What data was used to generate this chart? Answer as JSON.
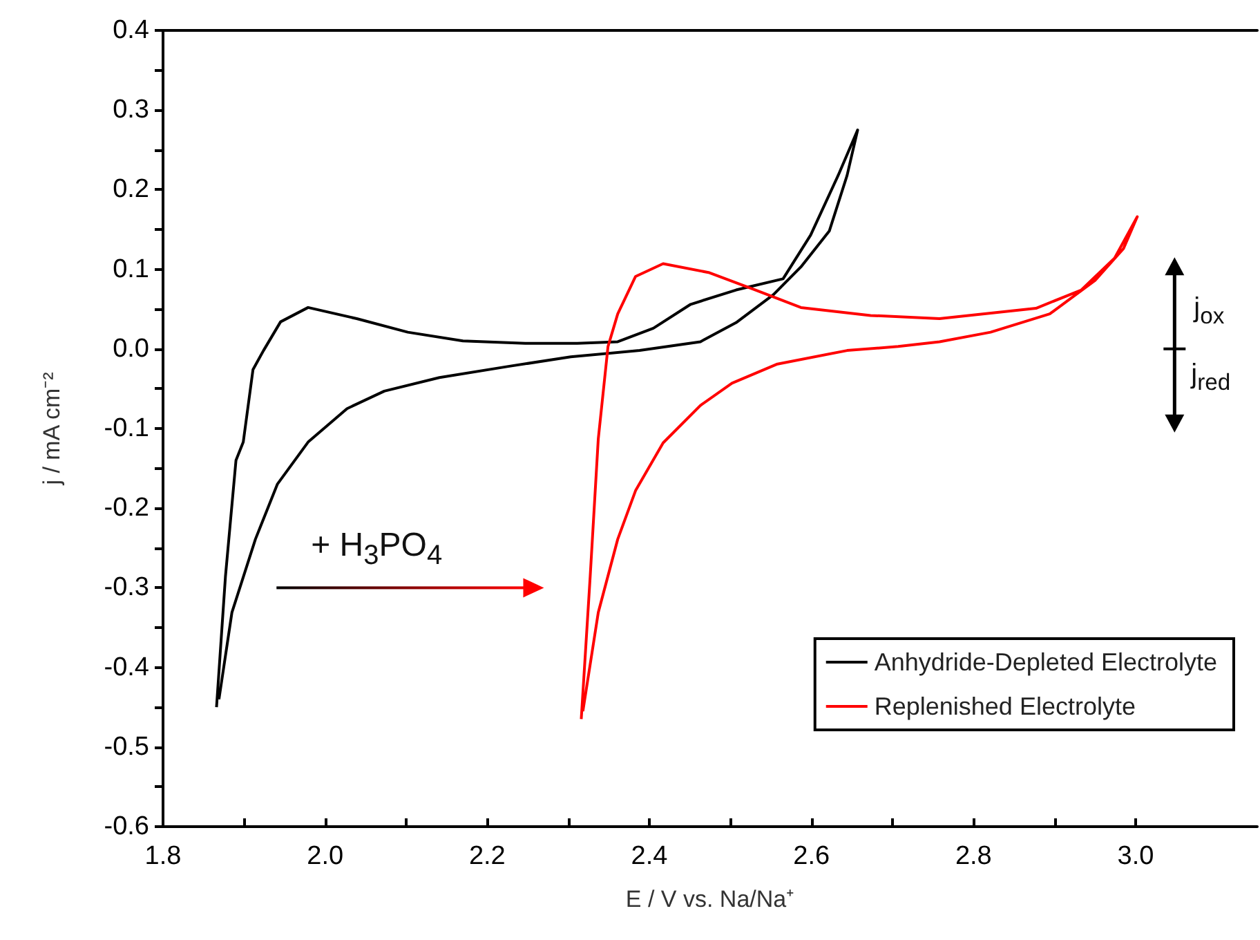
{
  "chart_data": {
    "type": "line",
    "xlabel": "E / V vs. Na/Na⁺",
    "ylabel": "j / mA cm⁻²",
    "xlim": [
      1.8,
      3.15
    ],
    "xticks": [
      {
        "value": 1.8,
        "label": "1.8"
      },
      {
        "value": 1.9,
        "label": null
      },
      {
        "value": 2.0,
        "label": "2.0"
      },
      {
        "value": 2.1,
        "label": null
      },
      {
        "value": 2.2,
        "label": "2.2"
      },
      {
        "value": 2.3,
        "label": null
      },
      {
        "value": 2.4,
        "label": "2.4"
      },
      {
        "value": 2.5,
        "label": null
      },
      {
        "value": 2.6,
        "label": "2.6"
      },
      {
        "value": 2.7,
        "label": null
      },
      {
        "value": 2.8,
        "label": "2.8"
      },
      {
        "value": 2.9,
        "label": null
      },
      {
        "value": 3.0,
        "label": "3.0"
      }
    ],
    "ylim": [
      -0.6,
      0.4
    ],
    "yticks": [
      -0.6,
      {
        "value": -0.55,
        "label": null
      },
      -0.5,
      {
        "value": -0.45,
        "label": null
      },
      -0.4,
      {
        "value": -0.35,
        "label": null
      },
      -0.3,
      {
        "value": -0.25,
        "label": null
      },
      -0.2,
      {
        "value": -0.15,
        "label": null
      },
      -0.1,
      {
        "value": -0.05,
        "label": null
      },
      {
        "value": 0,
        "label": "0.0"
      },
      {
        "value": 0.05,
        "label": null
      },
      0.1,
      {
        "value": 0.15,
        "label": null
      },
      0.2,
      {
        "value": 0.25,
        "label": null
      },
      0.3,
      {
        "value": 0.35,
        "label": null
      },
      0.4
    ],
    "grid": false,
    "legend": "bottom right",
    "marker": "none",
    "line_style": "solid",
    "series": [
      {
        "name": "Anhydride-Depleted Electrolyte",
        "color": "#000000",
        "x": [
          1.866,
          1.877,
          1.89,
          1.899,
          1.911,
          1.924,
          1.945,
          1.979,
          2.039,
          2.102,
          2.17,
          2.247,
          2.311,
          2.361,
          2.405,
          2.451,
          2.507,
          2.565,
          2.599,
          2.633,
          2.657,
          2.644,
          2.622,
          2.587,
          2.553,
          2.507,
          2.463,
          2.388,
          2.303,
          2.226,
          2.141,
          2.073,
          2.027,
          1.979,
          1.941,
          1.914,
          1.885,
          1.869
        ],
        "values": [
          -0.45,
          -0.286,
          -0.14,
          -0.117,
          -0.026,
          -0.002,
          0.034,
          0.052,
          0.038,
          0.021,
          0.01,
          0.007,
          0.007,
          0.009,
          0.026,
          0.056,
          0.074,
          0.088,
          0.143,
          0.218,
          0.275,
          0.218,
          0.148,
          0.103,
          0.068,
          0.033,
          0.009,
          -0.002,
          -0.01,
          -0.022,
          -0.036,
          -0.053,
          -0.075,
          -0.117,
          -0.17,
          -0.239,
          -0.331,
          -0.44
        ]
      },
      {
        "name": "Replenished Electrolyte",
        "color": "#ff0000",
        "x": [
          2.316,
          2.327,
          2.337,
          2.349,
          2.361,
          2.383,
          2.417,
          2.473,
          2.531,
          2.587,
          2.673,
          2.758,
          2.877,
          2.933,
          2.974,
          3.002,
          2.985,
          2.95,
          2.894,
          2.821,
          2.758,
          2.707,
          2.644,
          2.558,
          2.502,
          2.463,
          2.417,
          2.383,
          2.361,
          2.337,
          2.318
        ],
        "values": [
          -0.465,
          -0.286,
          -0.113,
          0.003,
          0.044,
          0.091,
          0.107,
          0.096,
          0.074,
          0.052,
          0.042,
          0.038,
          0.051,
          0.074,
          0.114,
          0.166,
          0.126,
          0.086,
          0.044,
          0.021,
          0.009,
          0.003,
          -0.002,
          -0.019,
          -0.043,
          -0.071,
          -0.118,
          -0.178,
          -0.239,
          -0.331,
          -0.455
        ]
      }
    ],
    "annotations": [
      "+ H$_{3}$PO$_{4}$",
      "j$_{ox}$",
      "j$_{red}$"
    ]
  }
}
